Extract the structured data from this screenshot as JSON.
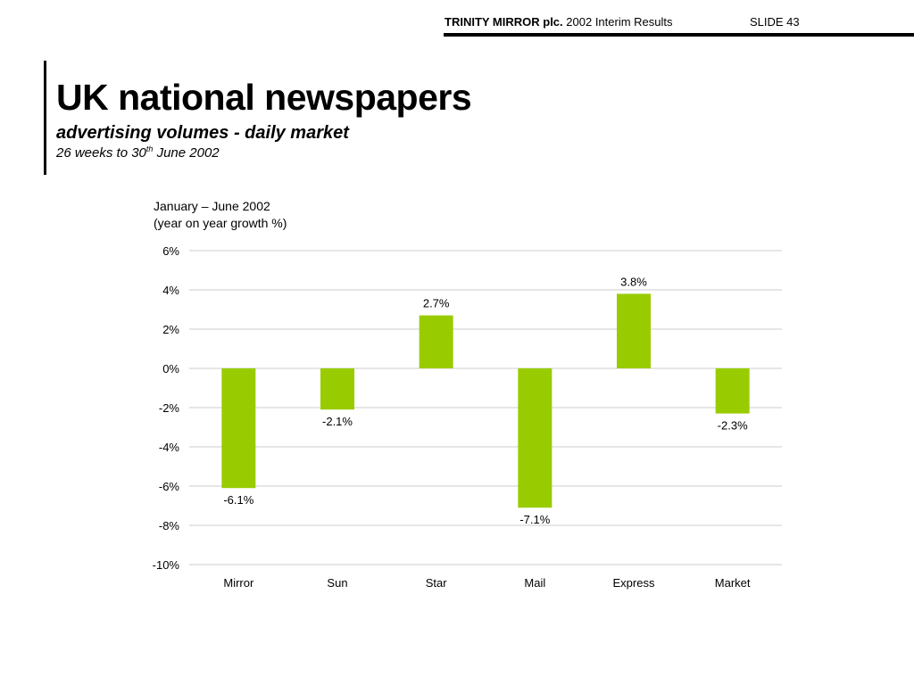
{
  "header": {
    "company": "TRINITY MIRROR plc.",
    "subtitle": "2002 Interim Results",
    "slide": "SLIDE 43"
  },
  "title": "UK national newspapers",
  "subtitle": "advertising volumes - daily market",
  "period": {
    "prefix": "26 weeks to 30",
    "sup": "th",
    "suffix": " June 2002"
  },
  "chart_data": {
    "type": "bar",
    "title": "January – June 2002",
    "ylabel": "(year on year growth %)",
    "categories": [
      "Mirror",
      "Sun",
      "Star",
      "Mail",
      "Express",
      "Market"
    ],
    "values": [
      -6.1,
      -2.1,
      2.7,
      -7.1,
      3.8,
      -2.3
    ],
    "value_labels": [
      "-6.1%",
      "-2.1%",
      "2.7%",
      "-7.1%",
      "3.8%",
      "-2.3%"
    ],
    "ylim": [
      -10,
      6
    ],
    "yticks": [
      6,
      4,
      2,
      0,
      -2,
      -4,
      -6,
      -8,
      -10
    ],
    "ytick_labels": [
      "6%",
      "4%",
      "2%",
      "0%",
      "-2%",
      "-4%",
      "-6%",
      "-8%",
      "-10%"
    ],
    "grid": true,
    "bar_color": "#99cc00",
    "grid_color": "#cccccc"
  }
}
